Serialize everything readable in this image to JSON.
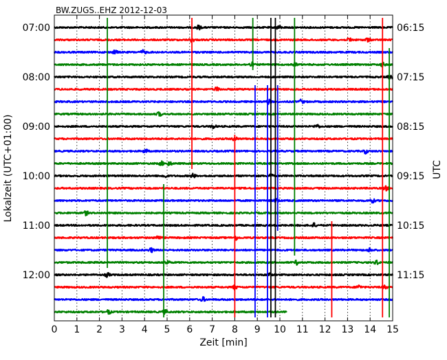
{
  "chart_data": {
    "type": "line",
    "title": "BW.ZUGS..EHZ 2012-12-03",
    "xlabel": "Zeit  [min]",
    "ylabel_left": "Lokalzeit (UTC+01:00)",
    "ylabel_right": "UTC",
    "xlim": [
      0,
      15
    ],
    "x_ticks": [
      "0",
      "1",
      "2",
      "3",
      "4",
      "5",
      "6",
      "7",
      "8",
      "9",
      "10",
      "11",
      "12",
      "13",
      "14",
      "15"
    ],
    "left_time_labels": [
      {
        "row": 0,
        "label": "07:00"
      },
      {
        "row": 4,
        "label": "08:00"
      },
      {
        "row": 8,
        "label": "09:00"
      },
      {
        "row": 12,
        "label": "10:00"
      },
      {
        "row": 16,
        "label": "11:00"
      },
      {
        "row": 20,
        "label": "12:00"
      }
    ],
    "right_time_labels": [
      {
        "row": 0,
        "label": "06:15"
      },
      {
        "row": 4,
        "label": "07:15"
      },
      {
        "row": 8,
        "label": "08:15"
      },
      {
        "row": 12,
        "label": "09:15"
      },
      {
        "row": 16,
        "label": "10:15"
      },
      {
        "row": 20,
        "label": "11:15"
      }
    ],
    "trace_colors": [
      "#000000",
      "#ff0000",
      "#0000ff",
      "#008000"
    ],
    "row_count": 24,
    "last_trace_end_min": 10.3,
    "vertical_grid": "dotted",
    "events": [
      {
        "row": 0,
        "x": 6.4
      },
      {
        "row": 0,
        "x": 9.95
      },
      {
        "row": 1,
        "x": 6.1
      },
      {
        "row": 1,
        "x": 13.1
      },
      {
        "row": 1,
        "x": 13.9
      },
      {
        "row": 2,
        "x": 2.7
      },
      {
        "row": 2,
        "x": 3.95
      },
      {
        "row": 3,
        "x": 8.75
      },
      {
        "row": 3,
        "x": 10.65
      },
      {
        "row": 3,
        "x": 14.55
      },
      {
        "row": 4,
        "x": 14.9
      },
      {
        "row": 5,
        "x": 7.2
      },
      {
        "row": 6,
        "x": 9.5
      },
      {
        "row": 6,
        "x": 10.95
      },
      {
        "row": 7,
        "x": 4.65
      },
      {
        "row": 8,
        "x": 7.05
      },
      {
        "row": 8,
        "x": 11.65
      },
      {
        "row": 9,
        "x": 8.0
      },
      {
        "row": 10,
        "x": 4.05
      },
      {
        "row": 10,
        "x": 13.8
      },
      {
        "row": 11,
        "x": 4.75
      },
      {
        "row": 11,
        "x": 5.1
      },
      {
        "row": 12,
        "x": 4.9
      },
      {
        "row": 12,
        "x": 6.15
      },
      {
        "row": 12,
        "x": 9.6
      },
      {
        "row": 13,
        "x": 14.7
      },
      {
        "row": 14,
        "x": 9.85
      },
      {
        "row": 14,
        "x": 14.1
      },
      {
        "row": 15,
        "x": 1.4
      },
      {
        "row": 16,
        "x": 11.5
      },
      {
        "row": 17,
        "x": 4.6
      },
      {
        "row": 17,
        "x": 8.05
      },
      {
        "row": 18,
        "x": 4.3
      },
      {
        "row": 18,
        "x": 14.0
      },
      {
        "row": 19,
        "x": 5.0
      },
      {
        "row": 19,
        "x": 10.75
      },
      {
        "row": 19,
        "x": 14.3
      },
      {
        "row": 20,
        "x": 2.35
      },
      {
        "row": 20,
        "x": 9.5
      },
      {
        "row": 21,
        "x": 8.0
      },
      {
        "row": 21,
        "x": 13.5
      },
      {
        "row": 21,
        "x": 14.65
      },
      {
        "row": 22,
        "x": 6.6
      },
      {
        "row": 23,
        "x": 2.4
      },
      {
        "row": 23,
        "x": 4.9
      }
    ],
    "spikes": [
      {
        "x": 2.35,
        "row_from": 0,
        "row_to": 20,
        "color": "#008000"
      },
      {
        "x": 4.85,
        "row_from": 13,
        "row_to": 24,
        "color": "#008000"
      },
      {
        "x": 6.1,
        "row_from": 0,
        "row_to": 12,
        "color": "#ff0000"
      },
      {
        "x": 8.0,
        "row_from": 9,
        "row_to": 24,
        "color": "#ff0000"
      },
      {
        "x": 8.8,
        "row_from": 0,
        "row_to": 4,
        "color": "#008000"
      },
      {
        "x": 8.9,
        "row_from": 5,
        "row_to": 24,
        "color": "#0000ff"
      },
      {
        "x": 9.45,
        "row_from": 5,
        "row_to": 24,
        "color": "#0000ff"
      },
      {
        "x": 9.6,
        "row_from": 0,
        "row_to": 24,
        "color": "#000000"
      },
      {
        "x": 9.8,
        "row_from": 0,
        "row_to": 24,
        "color": "#000000"
      },
      {
        "x": 9.9,
        "row_from": 5,
        "row_to": 17,
        "color": "#0000ff"
      },
      {
        "x": 10.65,
        "row_from": 0,
        "row_to": 19,
        "color": "#008000"
      },
      {
        "x": 12.3,
        "row_from": 16,
        "row_to": 24,
        "color": "#ff0000"
      },
      {
        "x": 14.55,
        "row_from": 0,
        "row_to": 24,
        "color": "#ff0000"
      },
      {
        "x": 14.85,
        "row_from": 2,
        "row_to": 24,
        "color": "#008000"
      }
    ]
  }
}
